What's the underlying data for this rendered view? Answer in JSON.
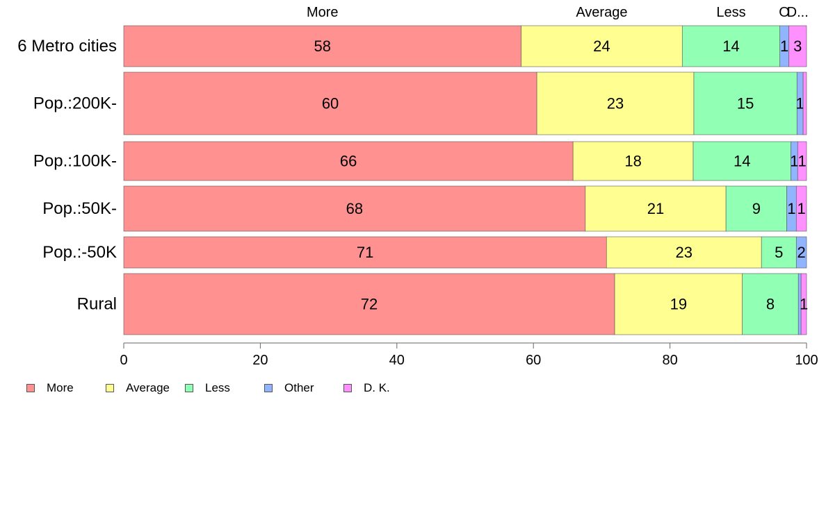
{
  "chart_data": {
    "type": "bar",
    "orientation": "horizontal",
    "stacked": true,
    "categories": [
      "6 Metro cities",
      "Pop.:200K-",
      "Pop.:100K-",
      "Pop.:50K-",
      "Pop.:-50K",
      "Rural"
    ],
    "series": [
      {
        "name": "More",
        "color": "#ff9191",
        "values": [
          58.2,
          60.5,
          65.8,
          67.6,
          70.7,
          71.9
        ],
        "labels": [
          "58",
          "60",
          "66",
          "68",
          "71",
          "72"
        ]
      },
      {
        "name": "Average",
        "color": "#ffff91",
        "values": [
          23.6,
          23.0,
          17.6,
          20.6,
          22.7,
          18.7
        ],
        "labels": [
          "24",
          "23",
          "18",
          "21",
          "23",
          "19"
        ]
      },
      {
        "name": "Less",
        "color": "#91ffb4",
        "values": [
          14.3,
          15.1,
          14.3,
          8.9,
          5.1,
          8.2
        ],
        "labels": [
          "14",
          "15",
          "14",
          "9",
          "5",
          "8"
        ]
      },
      {
        "name": "Other",
        "color": "#91b4ff",
        "values": [
          1.3,
          0.9,
          1.0,
          1.4,
          1.5,
          0.4
        ],
        "labels": [
          "1",
          "1",
          "1",
          "1",
          "2",
          ""
        ]
      },
      {
        "name": "D. K.",
        "color": "#ff91ff",
        "values": [
          2.6,
          0.5,
          1.3,
          1.5,
          0.0,
          0.8
        ],
        "labels": [
          "3",
          "",
          "1",
          "1",
          "",
          "1"
        ]
      }
    ],
    "top_labels": [
      "More",
      "Average",
      "Less",
      "O",
      "D..."
    ],
    "xlim": [
      0,
      100
    ],
    "xticks": [
      "0",
      "20",
      "40",
      "60",
      "80",
      "100"
    ],
    "grid": false,
    "legend": {
      "position": "bottom-left",
      "entries": [
        "More",
        "Average",
        "Less",
        "Other",
        "D. K."
      ]
    }
  }
}
